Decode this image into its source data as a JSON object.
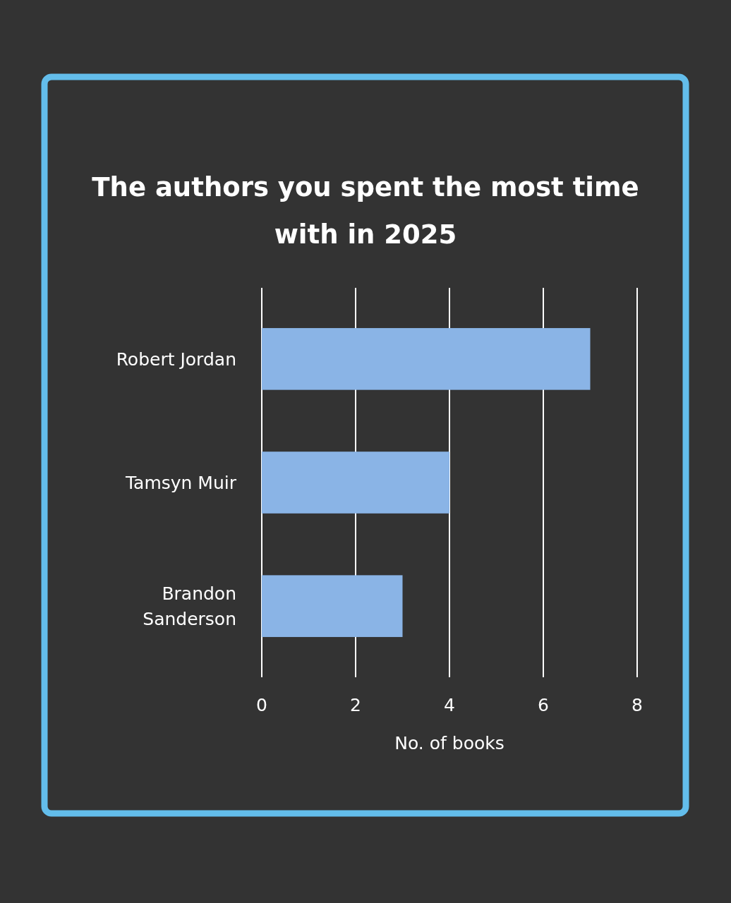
{
  "chart_data": {
    "type": "bar",
    "orientation": "horizontal",
    "title": "The authors you spent the most time with in 2025",
    "xlabel": "No. of books",
    "categories": [
      "Robert Jordan",
      "Tamsyn Muir",
      "Brandon Sanderson"
    ],
    "values": [
      7,
      4,
      3
    ],
    "color": "#8ab4e6",
    "xlim": [
      0,
      8
    ],
    "xticks": [
      0,
      2,
      4,
      6,
      8
    ],
    "grid": "x"
  }
}
